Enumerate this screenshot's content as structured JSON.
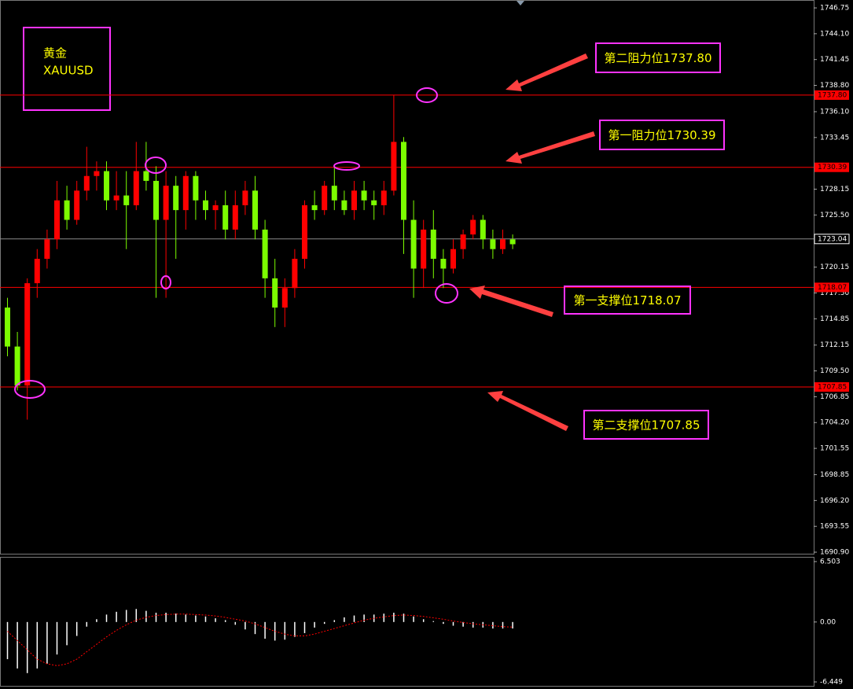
{
  "chart_data": [
    {
      "type": "candlestick",
      "symbol": [
        "黄金",
        "XAUUSD"
      ],
      "up_color": "#ff0000",
      "down_color": "#7cfc00",
      "open": [
        1716,
        1712,
        1708,
        1718.5,
        1721,
        1723,
        1727,
        1725,
        1728,
        1729.5,
        1730,
        1727,
        1727.5,
        1726.5,
        1730,
        1729,
        1725,
        1728.5,
        1726,
        1729.5,
        1727,
        1726,
        1726.5,
        1724,
        1726.5,
        1728,
        1724,
        1719,
        1716,
        1718,
        1721,
        1726.5,
        1726,
        1728.5,
        1727,
        1726,
        1728,
        1727,
        1726.5,
        1728,
        1733,
        1725,
        1720,
        1724,
        1721,
        1720,
        1722,
        1723.5,
        1725,
        1723,
        1722,
        1723
      ],
      "high": [
        1717,
        1713.5,
        1719,
        1722,
        1724,
        1729,
        1728.5,
        1729,
        1732.5,
        1731,
        1731,
        1730,
        1730,
        1733,
        1733,
        1730.5,
        1730,
        1729.5,
        1730,
        1730,
        1728,
        1727,
        1728,
        1728,
        1729,
        1729.5,
        1725,
        1721,
        1719,
        1722,
        1727,
        1728,
        1729,
        1730.5,
        1728,
        1729,
        1729,
        1728,
        1729,
        1737.8,
        1733.5,
        1727,
        1725,
        1726,
        1722,
        1723,
        1724,
        1725.5,
        1725.5,
        1724,
        1724,
        1723.5
      ],
      "low": [
        1711,
        1707.5,
        1704.5,
        1717,
        1720,
        1722,
        1724,
        1724.5,
        1727,
        1728,
        1726,
        1726,
        1722,
        1726,
        1728,
        1717,
        1717,
        1721,
        1724,
        1725,
        1725,
        1724,
        1723,
        1723,
        1725.5,
        1723,
        1717,
        1714,
        1714,
        1717,
        1720,
        1725,
        1725.5,
        1726,
        1725.5,
        1725,
        1726,
        1725,
        1725.5,
        1727.5,
        1721.5,
        1717,
        1718,
        1719,
        1718,
        1719.5,
        1721,
        1723,
        1722,
        1721,
        1721.5,
        1722
      ],
      "close": [
        1712,
        1708,
        1718.5,
        1721,
        1723,
        1727,
        1725,
        1728,
        1729.5,
        1730,
        1727,
        1727.5,
        1726.5,
        1730,
        1729,
        1725,
        1728.5,
        1726,
        1729.5,
        1727,
        1726,
        1726.5,
        1724,
        1726.5,
        1728,
        1724,
        1719,
        1716,
        1718,
        1721,
        1726.5,
        1726,
        1728.5,
        1727,
        1726,
        1728,
        1727,
        1726.5,
        1728,
        1733,
        1725,
        1720,
        1724,
        1721,
        1720,
        1722,
        1723.5,
        1725,
        1723,
        1722,
        1723,
        1722.5
      ],
      "ylim": [
        1690.66,
        1747.56
      ],
      "yticks": [
        {
          "value": 1746.75,
          "label": "1746.75"
        },
        {
          "value": 1744.1,
          "label": "1744.10"
        },
        {
          "value": 1741.45,
          "label": "1741.45"
        },
        {
          "value": 1738.8,
          "label": "1738.80"
        },
        {
          "value": 1736.1,
          "label": "1736.10"
        },
        {
          "value": 1733.45,
          "label": "1733.45"
        },
        {
          "value": 1728.15,
          "label": "1728.15"
        },
        {
          "value": 1725.5,
          "label": "1725.50"
        },
        {
          "value": 1720.15,
          "label": "1720.15"
        },
        {
          "value": 1717.5,
          "label": "1717.50"
        },
        {
          "value": 1714.85,
          "label": "1714.85"
        },
        {
          "value": 1712.15,
          "label": "1712.15"
        },
        {
          "value": 1709.5,
          "label": "1709.50"
        },
        {
          "value": 1706.85,
          "label": "1706.85"
        },
        {
          "value": 1704.2,
          "label": "1704.20"
        },
        {
          "value": 1701.55,
          "label": "1701.55"
        },
        {
          "value": 1698.85,
          "label": "1698.85"
        },
        {
          "value": 1696.2,
          "label": "1696.20"
        },
        {
          "value": 1693.55,
          "label": "1693.55"
        },
        {
          "value": 1690.9,
          "label": "1690.90"
        }
      ],
      "levels": [
        {
          "value": 1737.8,
          "label": "1737.80"
        },
        {
          "value": 1730.39,
          "label": "1730.39"
        },
        {
          "value": 1718.07,
          "label": "1718.07"
        },
        {
          "value": 1707.85,
          "label": "1707.85"
        }
      ],
      "level_color": "#ff0000",
      "current_price": {
        "value": 1723.04,
        "label": "1723.04"
      },
      "annotations": [
        "第二阻力位1737.80",
        "第一阻力位1730.39",
        "第一支撑位1718.07",
        "第二支撑位1707.85"
      ]
    },
    {
      "type": "macd",
      "histogram": [
        -4,
        -5,
        -5.5,
        -5,
        -4.5,
        -3.5,
        -2.5,
        -1.5,
        -0.5,
        0.3,
        0.8,
        1.1,
        1.3,
        1.4,
        1.2,
        1,
        1,
        0.9,
        0.8,
        0.7,
        0.6,
        0.4,
        0.2,
        -0.3,
        -0.8,
        -1.3,
        -1.8,
        -2,
        -1.9,
        -1.6,
        -1.2,
        -0.6,
        -0.2,
        0.2,
        0.5,
        0.7,
        0.8,
        0.8,
        0.9,
        1,
        0.9,
        0.6,
        0.3,
        0.1,
        -0.2,
        -0.4,
        -0.5,
        -0.6,
        -0.6,
        -0.7,
        -0.7,
        -0.7
      ],
      "signal": [
        -1,
        -2,
        -3,
        -4,
        -4.5,
        -4.7,
        -4.5,
        -4,
        -3.2,
        -2.4,
        -1.6,
        -0.9,
        -0.3,
        0.2,
        0.5,
        0.7,
        0.8,
        0.85,
        0.85,
        0.8,
        0.75,
        0.65,
        0.5,
        0.3,
        0.1,
        -0.2,
        -0.6,
        -1,
        -1.3,
        -1.5,
        -1.5,
        -1.3,
        -1,
        -0.7,
        -0.4,
        -0.1,
        0.2,
        0.4,
        0.55,
        0.7,
        0.75,
        0.7,
        0.6,
        0.45,
        0.3,
        0.1,
        -0.05,
        -0.2,
        -0.3,
        -0.4,
        -0.5,
        -0.55
      ],
      "histogram_color": "#ffffff",
      "signal_color": "#ff0000",
      "ylim": [
        -6.449,
        6.503
      ],
      "yticks": [
        {
          "value": 6.503,
          "label": "6.503"
        },
        {
          "value": 0,
          "label": "0.00"
        },
        {
          "value": -6.449,
          "label": "-6.449"
        }
      ]
    }
  ]
}
